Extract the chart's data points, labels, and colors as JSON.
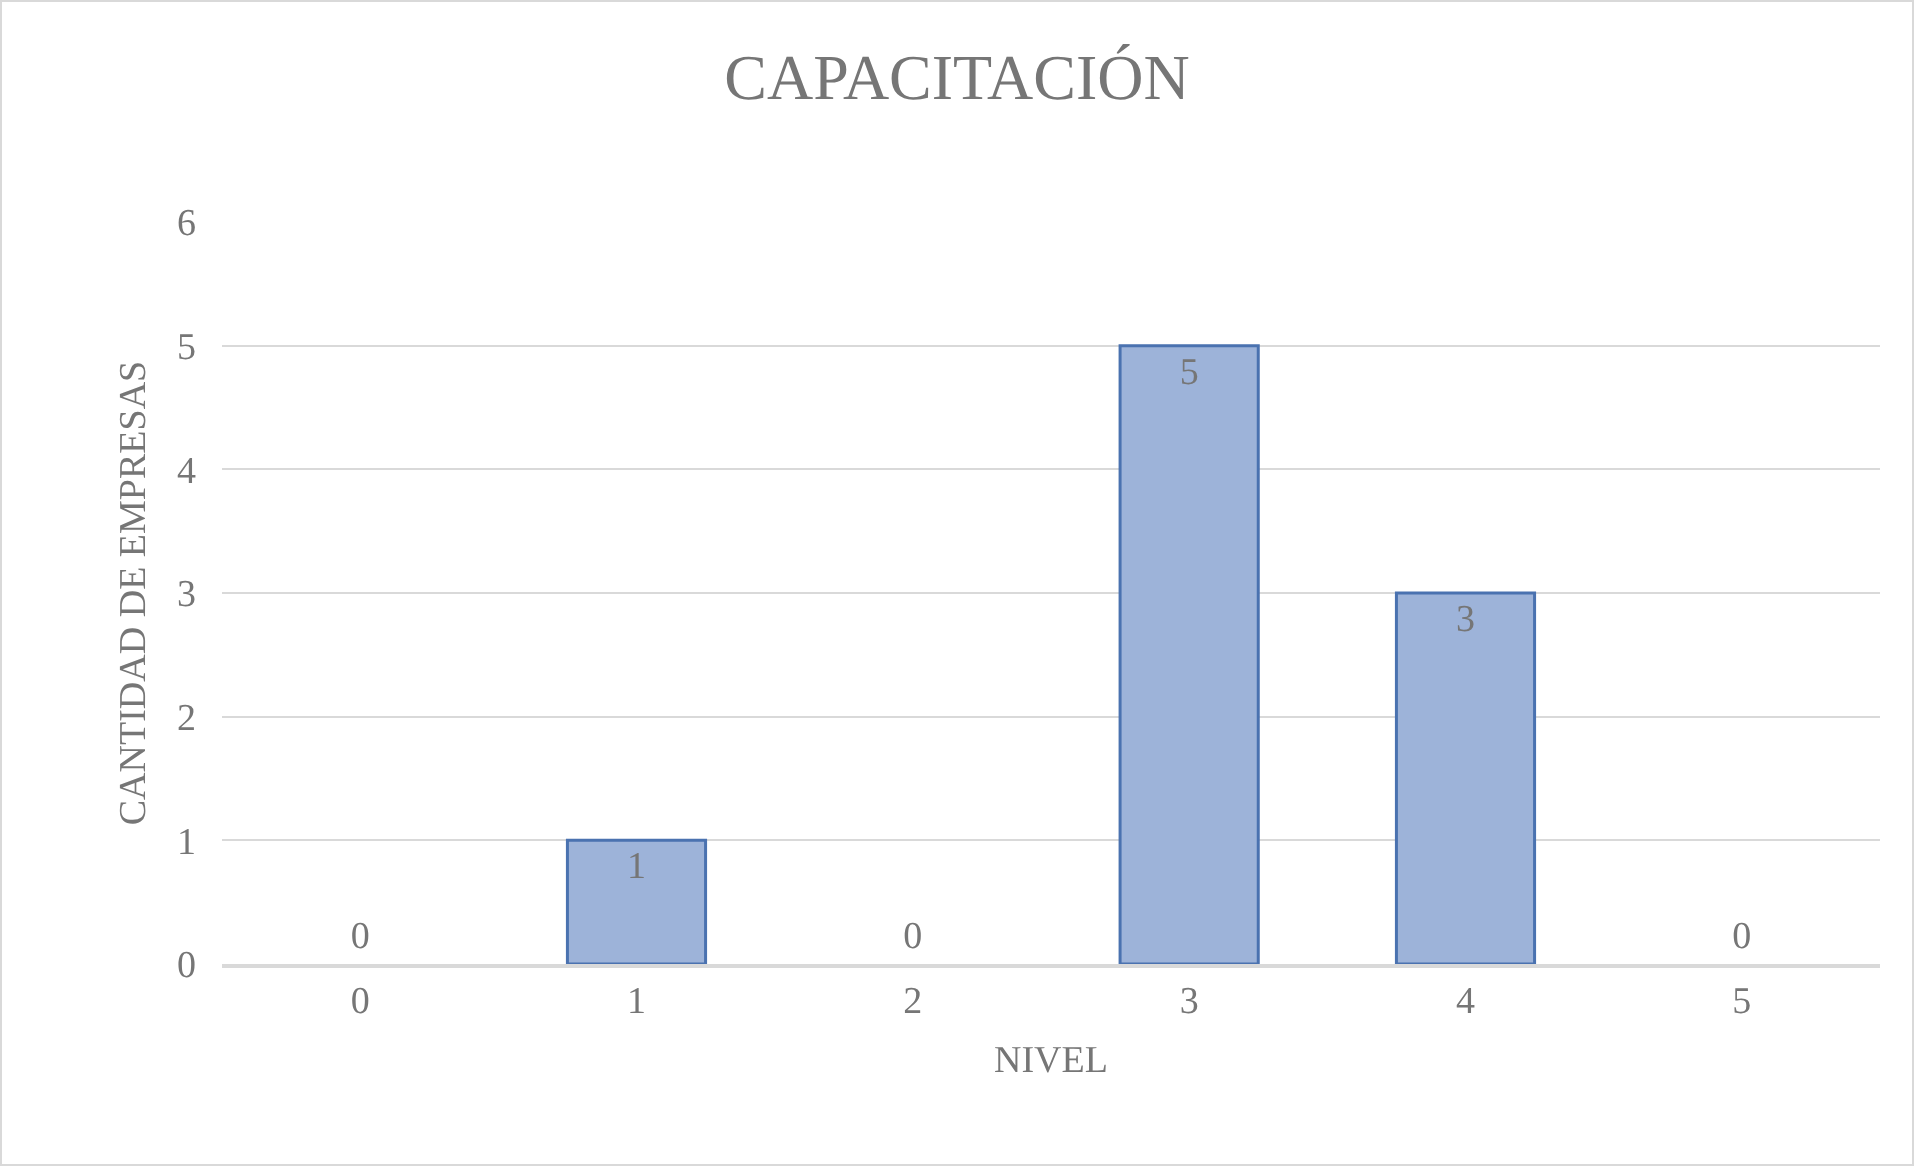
{
  "chart_data": {
    "type": "bar",
    "title": "CAPACITACIÓN",
    "xlabel": "NIVEL",
    "ylabel": "CANTIDAD DE EMPRESAS",
    "categories": [
      "0",
      "1",
      "2",
      "3",
      "4",
      "5"
    ],
    "values": [
      0,
      1,
      0,
      5,
      3,
      0
    ],
    "color": "#9db3d9",
    "ylim": [
      0,
      6
    ],
    "yticks": [
      0,
      1,
      2,
      3,
      4,
      5,
      6
    ],
    "grid": "y",
    "data_labels": true,
    "legend": false
  }
}
